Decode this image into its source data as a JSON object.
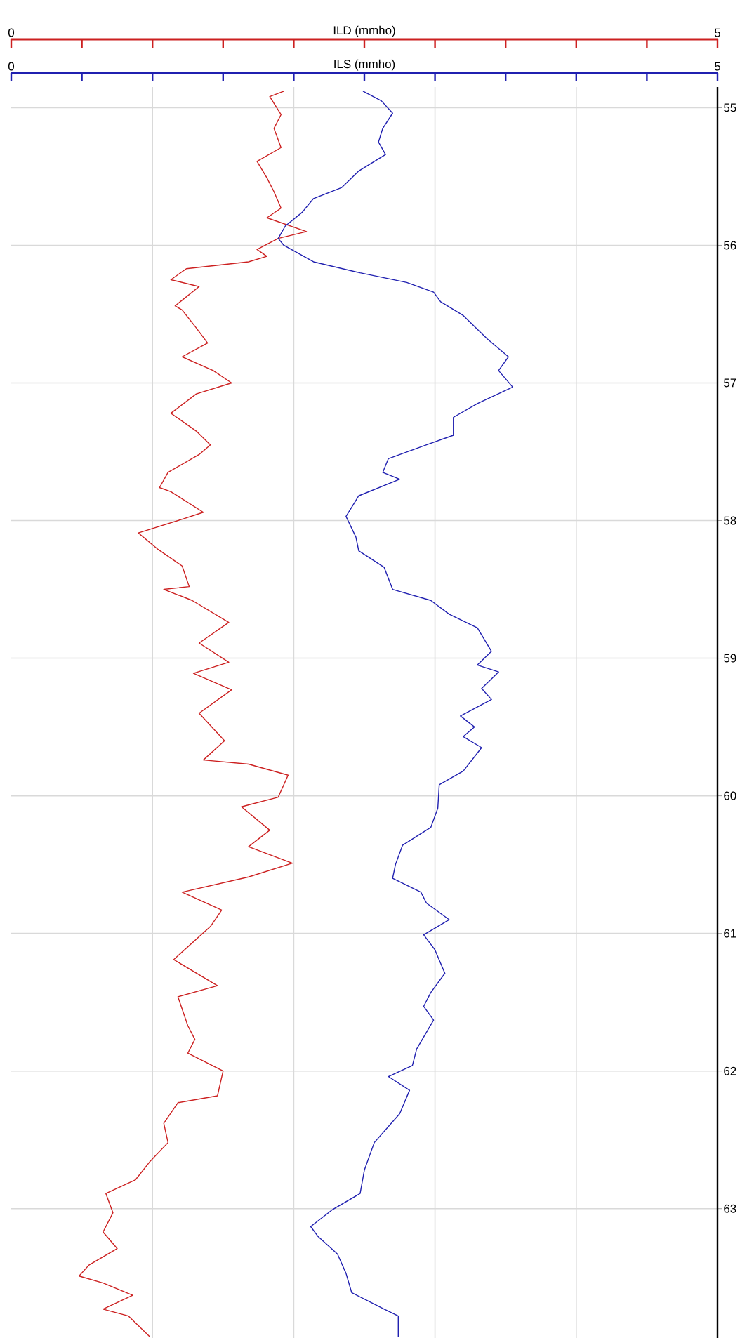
{
  "chart_data": {
    "type": "line",
    "xlabel": "ILD (mmho)",
    "x2label": "ILS (mmho)",
    "xlim": [
      0,
      5
    ],
    "x2lim": [
      0,
      5
    ],
    "xticks": [
      0,
      {
        "value": 0.5,
        "label": null
      },
      {
        "value": 1,
        "label": null
      },
      {
        "value": 1.5,
        "label": null
      },
      {
        "value": 2,
        "label": null
      },
      {
        "value": 2.5,
        "label": null
      },
      {
        "value": 3,
        "label": null
      },
      {
        "value": 3.5,
        "label": null
      },
      {
        "value": 4,
        "label": null
      },
      {
        "value": 4.5,
        "label": null
      },
      5
    ],
    "x2ticks": [
      0,
      {
        "value": 0.5,
        "label": null
      },
      {
        "value": 1,
        "label": null
      },
      {
        "value": 1.5,
        "label": null
      },
      {
        "value": 2,
        "label": null
      },
      {
        "value": 2.5,
        "label": null
      },
      {
        "value": 3,
        "label": null
      },
      {
        "value": 3.5,
        "label": null
      },
      {
        "value": 4,
        "label": null
      },
      {
        "value": 4.5,
        "label": null
      },
      5
    ],
    "ylim": [
      63.94,
      54.85
    ],
    "yticks": [
      55,
      56,
      57,
      58,
      59,
      60,
      61,
      62,
      63
    ],
    "grid": true,
    "series": [
      {
        "color": "#cc2020",
        "x": [
          1.93,
          1.83,
          1.91,
          1.86,
          1.91,
          1.74,
          1.81,
          1.86,
          1.91,
          1.81,
          2.09,
          1.89,
          1.74,
          1.81,
          1.68,
          1.24,
          1.13,
          1.33,
          1.16,
          1.21,
          1.31,
          1.39,
          1.21,
          1.43,
          1.56,
          1.31,
          1.13,
          1.31,
          1.41,
          1.33,
          1.11,
          1.05,
          1.13,
          1.36,
          1.21,
          0.9,
          1.04,
          1.21,
          1.26,
          1.08,
          1.28,
          1.54,
          1.33,
          1.54,
          1.29,
          1.56,
          1.33,
          1.51,
          1.36,
          1.68,
          1.96,
          1.89,
          1.63,
          1.83,
          1.68,
          1.99,
          1.68,
          1.21,
          1.49,
          1.41,
          1.15,
          1.46,
          1.18,
          1.25,
          1.3,
          1.25,
          1.5,
          1.46,
          1.18,
          1.08,
          1.11,
          0.98,
          0.88,
          0.67,
          0.72,
          0.65,
          0.75,
          0.55,
          0.48,
          0.65,
          0.86,
          0.65,
          0.83,
          0.98
        ],
        "values": [
          54.88,
          54.92,
          55.05,
          55.15,
          55.29,
          55.39,
          55.51,
          55.61,
          55.73,
          55.8,
          55.9,
          55.95,
          56.03,
          56.08,
          56.12,
          56.17,
          56.25,
          56.3,
          56.44,
          56.47,
          56.6,
          56.71,
          56.81,
          56.91,
          57.0,
          57.08,
          57.22,
          57.35,
          57.45,
          57.52,
          57.65,
          57.76,
          57.79,
          57.94,
          57.99,
          58.09,
          58.21,
          58.33,
          58.48,
          58.5,
          58.58,
          58.74,
          58.89,
          59.03,
          59.11,
          59.23,
          59.4,
          59.6,
          59.74,
          59.77,
          59.85,
          60.01,
          60.08,
          60.25,
          60.37,
          60.49,
          60.59,
          60.7,
          60.83,
          60.95,
          61.19,
          61.38,
          61.46,
          61.67,
          61.77,
          61.87,
          62.0,
          62.18,
          62.23,
          62.38,
          62.52,
          62.66,
          62.79,
          62.89,
          63.03,
          63.17,
          63.29,
          63.41,
          63.49,
          63.54,
          63.63,
          63.73,
          63.78,
          63.93
        ]
      },
      {
        "color": "#2020b0",
        "axis": "x2",
        "x": [
          2.49,
          2.62,
          2.7,
          2.63,
          2.6,
          2.65,
          2.46,
          2.34,
          2.14,
          2.06,
          1.94,
          1.89,
          1.93,
          2.14,
          2.47,
          2.8,
          2.99,
          3.04,
          3.2,
          3.37,
          3.52,
          3.45,
          3.55,
          3.3,
          3.13,
          3.13,
          2.94,
          2.67,
          2.63,
          2.75,
          2.46,
          2.37,
          2.44,
          2.46,
          2.64,
          2.7,
          2.97,
          3.1,
          3.3,
          3.4,
          3.3,
          3.45,
          3.33,
          3.4,
          3.18,
          3.28,
          3.2,
          3.33,
          3.2,
          3.03,
          3.02,
          2.97,
          2.77,
          2.72,
          2.7,
          2.9,
          2.94,
          3.1,
          2.92,
          3.0,
          3.07,
          2.97,
          2.92,
          2.99,
          2.87,
          2.84,
          2.67,
          2.82,
          2.75,
          2.57,
          2.5,
          2.47,
          2.27,
          2.12,
          2.17,
          2.31,
          2.37,
          2.41,
          2.64,
          2.74,
          2.74
        ],
        "values": [
          54.88,
          54.95,
          55.04,
          55.15,
          55.25,
          55.34,
          55.46,
          55.58,
          55.66,
          55.76,
          55.86,
          55.95,
          56.0,
          56.12,
          56.2,
          56.27,
          56.34,
          56.41,
          56.51,
          56.68,
          56.81,
          56.91,
          57.03,
          57.15,
          57.25,
          57.38,
          57.45,
          57.55,
          57.65,
          57.7,
          57.82,
          57.97,
          58.12,
          58.22,
          58.34,
          58.5,
          58.58,
          58.68,
          58.78,
          58.95,
          59.05,
          59.1,
          59.22,
          59.3,
          59.42,
          59.5,
          59.57,
          59.65,
          59.82,
          59.92,
          60.09,
          60.23,
          60.36,
          60.5,
          60.6,
          60.7,
          60.78,
          60.9,
          61.01,
          61.12,
          61.29,
          61.43,
          61.53,
          61.63,
          61.84,
          61.96,
          62.04,
          62.14,
          62.31,
          62.52,
          62.72,
          62.89,
          63.01,
          63.13,
          63.2,
          63.33,
          63.47,
          63.61,
          63.73,
          63.78,
          63.93
        ]
      }
    ]
  }
}
